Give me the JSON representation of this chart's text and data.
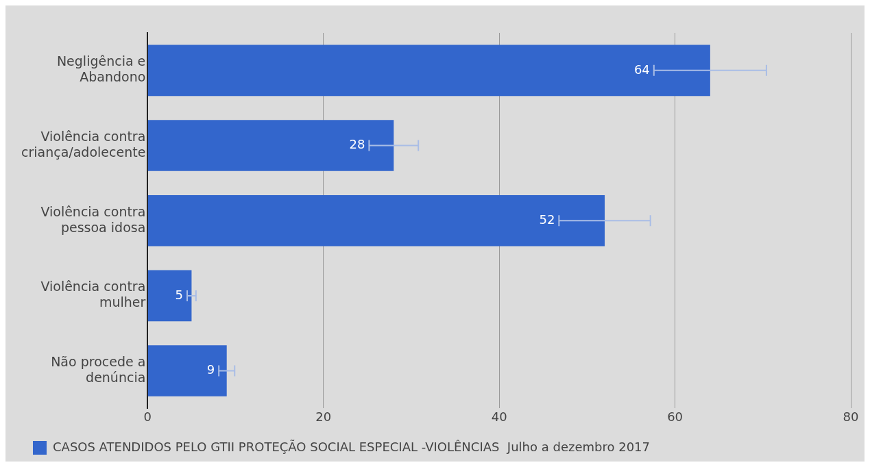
{
  "chart_data": {
    "type": "bar",
    "orientation": "horizontal",
    "categories": [
      "Negligência e Abandono",
      "Violência contra criança/adolecente",
      "Violência contra pessoa idosa",
      "Violência contra mulher",
      "Não procede a denúncia"
    ],
    "series": [
      {
        "name": "CASOS ATENDIDOS PELO GTII PROTEÇÃO SOCIAL ESPECIAL -VIOLÊNCIAS  Julho a dezembro 2017",
        "color": "#3366cc",
        "values": [
          64,
          28,
          52,
          5,
          9
        ],
        "errors": [
          6.4,
          2.8,
          5.2,
          0.5,
          0.9
        ]
      }
    ],
    "xlim": [
      0,
      80
    ],
    "xticks": [
      0,
      20,
      40,
      60,
      80
    ],
    "grid": "x",
    "legend": "bottom",
    "data_labels": true
  }
}
